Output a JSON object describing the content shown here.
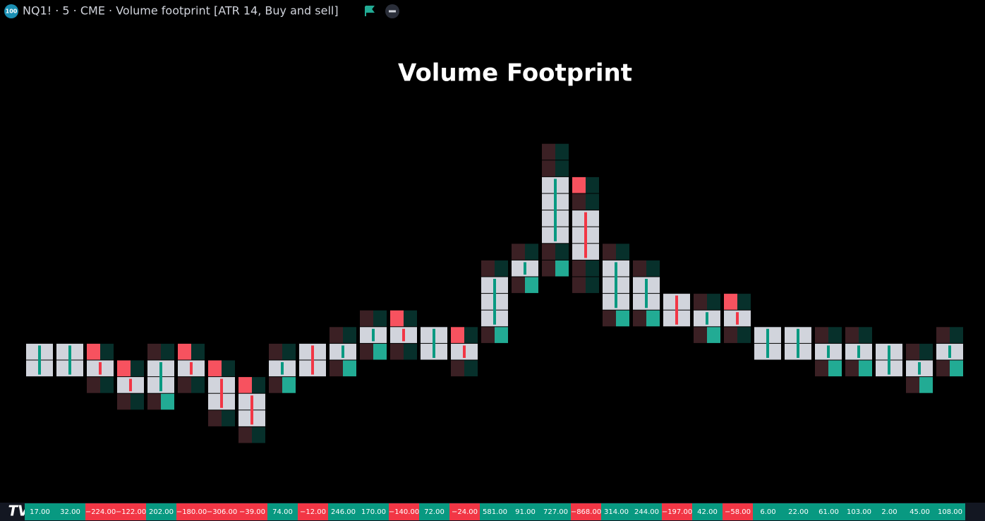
{
  "header": {
    "text": "NQ1! · 5 · CME · Volume footprint [ATR 14, Buy and sell]",
    "badge": "100"
  },
  "chart_data": {
    "type": "footprint",
    "title": "Volume Footprint",
    "values": [
      17,
      32,
      -224,
      -122,
      202,
      -180,
      -306,
      -39,
      74,
      -12,
      246,
      170,
      -140,
      72,
      -24,
      581,
      91,
      727,
      -868,
      314,
      244,
      -197,
      42,
      -58,
      6,
      22,
      61,
      103,
      2,
      45,
      108
    ],
    "value_labels": [
      "17.00",
      "32.00",
      "−224.00",
      "−122.00",
      "202.00",
      "−180.00",
      "−306.00",
      "−39.00",
      "74.00",
      "−12.00",
      "246.00",
      "170.00",
      "−140.00",
      "72.00",
      "−24.00",
      "581.00",
      "91.00",
      "727.00",
      "−868.00",
      "314.00",
      "244.00",
      "−197.00",
      "42.00",
      "−58.00",
      "6.00",
      "22.00",
      "61.00",
      "103.00",
      "2.00",
      "45.00",
      "108.00"
    ],
    "high": [
      6,
      6,
      6,
      5,
      6,
      6,
      5,
      4,
      6,
      6,
      7,
      8,
      8,
      7,
      7,
      11,
      12,
      18,
      16,
      12,
      11,
      9,
      9,
      9,
      7,
      7,
      7,
      7,
      6,
      6,
      7
    ],
    "low": [
      4,
      4,
      3,
      2,
      2,
      3,
      1,
      0,
      3,
      4,
      4,
      5,
      5,
      5,
      4,
      6,
      9,
      10,
      9,
      7,
      7,
      7,
      6,
      6,
      5,
      5,
      4,
      4,
      4,
      3,
      4
    ],
    "ylim": [
      0,
      19
    ],
    "colors": {
      "positive": "#089981",
      "negative": "#f23645"
    }
  }
}
